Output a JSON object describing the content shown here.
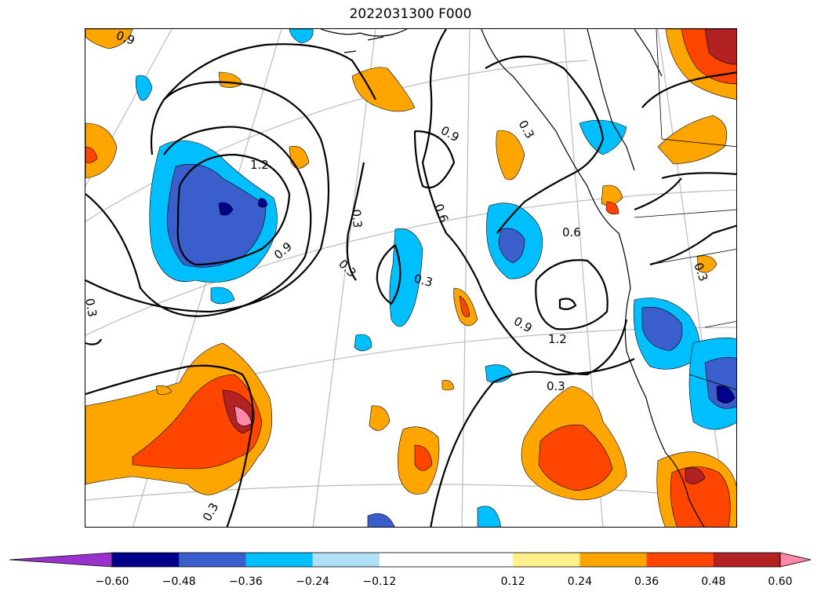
{
  "title": "2022031300 F000",
  "contour_labels": [
    "0.9",
    "1.2",
    "0.9",
    "0.3",
    "0.3",
    "0.6",
    "0.3",
    "0.9",
    "0.3",
    "0.6",
    "0.9",
    "1.2",
    "0.3",
    "0.3",
    "0.3",
    "0.3"
  ],
  "colorbar": {
    "colors": [
      "#9932cc",
      "#00008b",
      "#3a5fcd",
      "#00bfff",
      "#b0e0f6",
      "#ffffff",
      "#ffffff",
      "#fff08c",
      "#ffa500",
      "#ff4500",
      "#b22222",
      "#ff88aa"
    ],
    "ticks": [
      "−0.60",
      "−0.48",
      "−0.36",
      "−0.24",
      "−0.12",
      "0.12",
      "0.24",
      "0.36",
      "0.48",
      "0.60"
    ]
  }
}
